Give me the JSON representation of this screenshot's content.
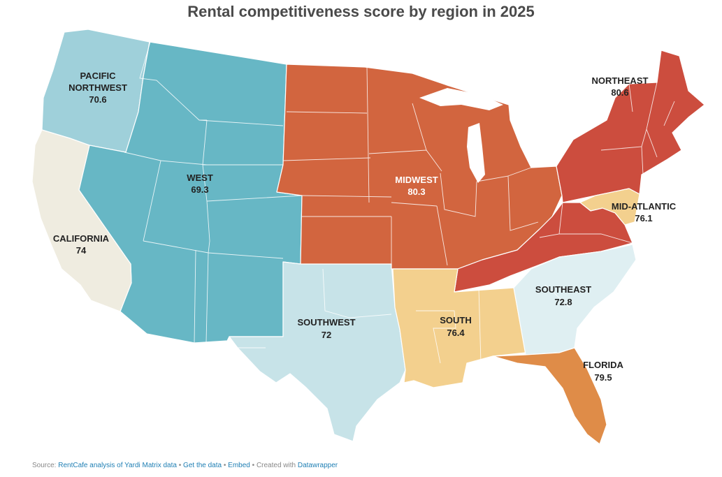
{
  "title": "Rental competitiveness score by region in 2025",
  "regions": {
    "pacific_northwest": {
      "name_line1": "PACIFIC",
      "name_line2": "NORTHWEST",
      "score": "70.6",
      "color": "#9fd0da"
    },
    "west": {
      "name": "WEST",
      "score": "69.3",
      "color": "#67b7c5"
    },
    "california": {
      "name": "CALIFORNIA",
      "score": "74",
      "color": "#efece0"
    },
    "southwest": {
      "name": "SOUTHWEST",
      "score": "72",
      "color": "#c7e3e8"
    },
    "midwest": {
      "name": "MIDWEST",
      "score": "80.3",
      "color": "#d2653f"
    },
    "south": {
      "name": "SOUTH",
      "score": "76.4",
      "color": "#f3d08e"
    },
    "southeast": {
      "name": "SOUTHEAST",
      "score": "72.8",
      "color": "#dfeff2"
    },
    "florida": {
      "name": "FLORIDA",
      "score": "79.5",
      "color": "#df8c48"
    },
    "northeast": {
      "name": "NORTHEAST",
      "score": "80.6",
      "color": "#cc4d3e"
    },
    "mid_atlantic": {
      "name": "MID-ATLANTIC",
      "score": "76.1",
      "color": "#f3d08e"
    }
  },
  "footer": {
    "source_prefix": "Source:",
    "source_link": "RentCafe analysis of Yardi Matrix data",
    "sep1": "•",
    "get_data": "Get the data",
    "sep2": "•",
    "embed": "Embed",
    "sep3": "•",
    "created_with": "Created with",
    "datawrapper": "Datawrapper"
  }
}
